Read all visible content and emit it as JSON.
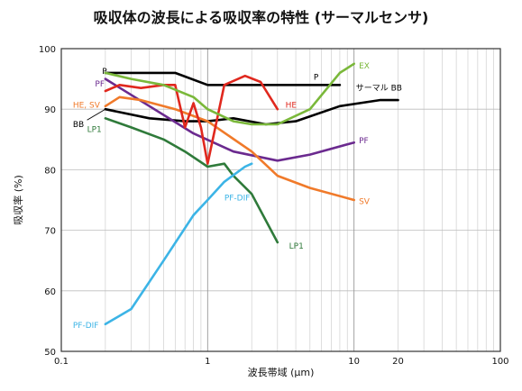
{
  "chart_data": {
    "type": "line",
    "title": "吸収体の波長による吸収率の特性 (サーマルセンサ)",
    "xlabel": "波長帯域 (μm)",
    "ylabel": "吸収率 (%)",
    "xscale": "log",
    "xlim": [
      0.1,
      100
    ],
    "ylim": [
      50,
      100
    ],
    "grid": true,
    "legend": "inline labels",
    "x_ticks": [
      "0.1",
      "1",
      "10",
      "20",
      "100"
    ],
    "y_ticks": [
      "50",
      "60",
      "70",
      "80",
      "90",
      "100"
    ],
    "series": [
      {
        "name": "P",
        "color": "#000000",
        "x": [
          0.2,
          0.3,
          0.6,
          1.0,
          2.0,
          4.0,
          8.0
        ],
        "y": [
          96,
          96,
          96,
          94,
          94,
          94,
          94
        ]
      },
      {
        "name": "BB",
        "color": "#000000",
        "x": [
          0.2,
          0.4,
          0.7,
          1.0,
          1.5,
          2.5,
          4.0,
          8.0,
          15.0,
          20.0
        ],
        "y": [
          90,
          88.5,
          88,
          88,
          88.5,
          87.5,
          88,
          90.5,
          91.5,
          91.5
        ]
      },
      {
        "name": "PF",
        "color": "#6b2a8f",
        "x": [
          0.2,
          0.4,
          0.8,
          1.5,
          3.0,
          5.0,
          10.0
        ],
        "y": [
          95,
          90.5,
          86,
          83,
          81.5,
          82.5,
          84.5
        ]
      },
      {
        "name": "HE, SV",
        "color": "#f07a2a",
        "x": [
          0.2,
          0.25,
          0.35,
          0.6,
          1.0,
          2.0,
          3.0,
          5.0,
          10.0
        ],
        "y": [
          90.5,
          92,
          91.5,
          90,
          88,
          83,
          79,
          77,
          75
        ]
      },
      {
        "name": "HE",
        "color": "#e0281e",
        "x": [
          0.2,
          0.25,
          0.35,
          0.5,
          0.6,
          0.7,
          0.8,
          0.9,
          1.0,
          1.3,
          1.8,
          2.3,
          3.0
        ],
        "y": [
          93,
          94,
          93.5,
          94,
          94,
          87,
          91,
          87,
          81,
          94,
          95.5,
          94.5,
          90
        ]
      },
      {
        "name": "EX",
        "color": "#7ab83a",
        "x": [
          0.2,
          0.3,
          0.5,
          0.8,
          1.0,
          1.5,
          2.0,
          3.0,
          5.0,
          8.0,
          10.0
        ],
        "y": [
          96,
          95,
          94,
          92,
          90,
          88,
          87.5,
          87.5,
          90,
          96,
          97.5
        ]
      },
      {
        "name": "LP1",
        "color": "#2f7a3a",
        "x": [
          0.2,
          0.3,
          0.5,
          0.7,
          1.0,
          1.3,
          1.5,
          2.0,
          3.0
        ],
        "y": [
          88.5,
          87,
          85,
          83,
          80.5,
          81,
          79,
          76,
          68
        ]
      },
      {
        "name": "PF-DIF",
        "color": "#3cb4e6",
        "x": [
          0.2,
          0.3,
          0.5,
          0.8,
          1.0,
          1.3,
          1.8,
          2.0
        ],
        "y": [
          54.5,
          57,
          65,
          72.5,
          75,
          78,
          80.5,
          81
        ]
      }
    ],
    "annotations": [
      {
        "text": "P",
        "x": 0.19,
        "y": 96.3,
        "color": "#000000"
      },
      {
        "text": "P",
        "x": 5.3,
        "y": 95.3,
        "color": "#000000"
      },
      {
        "text": "PF",
        "x": 0.17,
        "y": 94.2,
        "color": "#6b2a8f"
      },
      {
        "text": "HE, SV",
        "x": 0.12,
        "y": 90.7,
        "color": "#f07a2a"
      },
      {
        "text": "HE",
        "x": 3.4,
        "y": 90.7,
        "color": "#e0281e"
      },
      {
        "text": "EX",
        "x": 10.8,
        "y": 97.2,
        "color": "#7ab83a"
      },
      {
        "text": "サーマル BB",
        "x": 10.3,
        "y": 93.5,
        "color": "#000000"
      },
      {
        "text": "BB",
        "x": 0.12,
        "y": 87.5,
        "color": "#000000"
      },
      {
        "text": "LP1",
        "x": 0.15,
        "y": 86.7,
        "color": "#2f7a3a"
      },
      {
        "text": "PF",
        "x": 10.8,
        "y": 84.8,
        "color": "#6b2a8f"
      },
      {
        "text": "PF-DIF",
        "x": 1.3,
        "y": 75.4,
        "color": "#3cb4e6"
      },
      {
        "text": "SV",
        "x": 10.8,
        "y": 74.8,
        "color": "#f07a2a"
      },
      {
        "text": "LP1",
        "x": 3.6,
        "y": 67.4,
        "color": "#2f7a3a"
      },
      {
        "text": "PF-DIF",
        "x": 0.12,
        "y": 54.3,
        "color": "#3cb4e6"
      }
    ]
  }
}
